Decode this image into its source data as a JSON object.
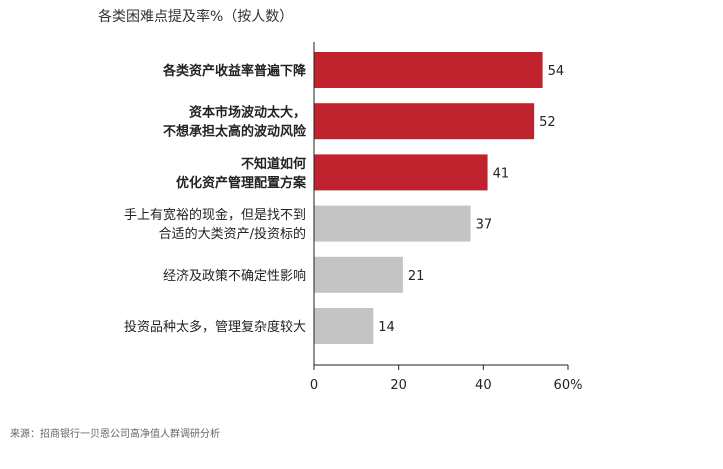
{
  "title": "各类困难点提及率%（按人数）",
  "source": "来源：招商银行一贝恩公司高净值人群调研分析",
  "colors": {
    "highlight": "#c0222e",
    "normal": "#c4c4c4",
    "axis": "#222222"
  },
  "chart_data": {
    "type": "bar",
    "orientation": "horizontal",
    "categories": [
      [
        "各类资产收益率普遍下降"
      ],
      [
        "资本市场波动太大，",
        "不想承担太高的波动风险"
      ],
      [
        "不知道如何",
        "优化资产管理配置方案"
      ],
      [
        "手上有宽裕的现金，但是找不到",
        "合适的大类资产/投资标的"
      ],
      [
        "经济及政策不确定性影响"
      ],
      [
        "投资品种太多，管理复杂度较大"
      ]
    ],
    "values": [
      54,
      52,
      41,
      37,
      21,
      14
    ],
    "highlighted": [
      true,
      true,
      true,
      false,
      false,
      false
    ],
    "xlim": [
      0,
      60
    ],
    "xticks": [
      0,
      20,
      40,
      60
    ],
    "xtick_labels": [
      "0",
      "20",
      "40",
      "60%"
    ],
    "title": "各类困难点提及率%（按人数）",
    "xlabel": "",
    "ylabel": ""
  }
}
